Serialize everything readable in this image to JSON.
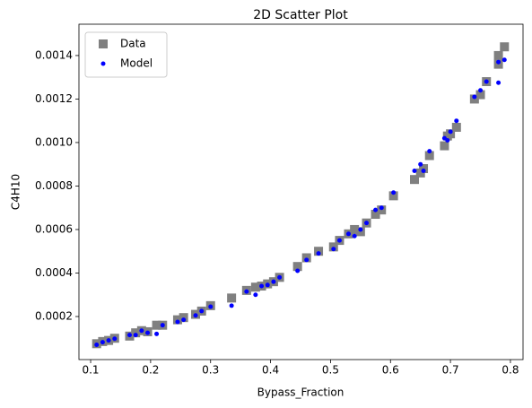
{
  "chart_data": {
    "type": "scatter",
    "title": "2D Scatter Plot",
    "x_label": "Bypass_Fraction",
    "y_label": "C4H10",
    "x": [
      0.11,
      0.12,
      0.13,
      0.14,
      0.165,
      0.175,
      0.185,
      0.195,
      0.21,
      0.22,
      0.245,
      0.255,
      0.275,
      0.285,
      0.3,
      0.335,
      0.36,
      0.375,
      0.385,
      0.395,
      0.405,
      0.415,
      0.445,
      0.46,
      0.48,
      0.505,
      0.515,
      0.53,
      0.54,
      0.55,
      0.56,
      0.575,
      0.585,
      0.605,
      0.64,
      0.65,
      0.655,
      0.665,
      0.69,
      0.695,
      0.7,
      0.71,
      0.74,
      0.75,
      0.76,
      0.78,
      0.78,
      0.79
    ],
    "series": [
      {
        "name": "Data",
        "color": "#808080",
        "marker": "square",
        "values": [
          7.5e-05,
          8.5e-05,
          9e-05,
          0.0001,
          0.00011,
          0.000125,
          0.000135,
          0.00013,
          0.00016,
          0.00016,
          0.000185,
          0.000195,
          0.00021,
          0.000225,
          0.00025,
          0.000285,
          0.00032,
          0.000335,
          0.00034,
          0.00035,
          0.00036,
          0.00038,
          0.00043,
          0.00047,
          0.0005,
          0.00052,
          0.00055,
          0.00058,
          0.0006,
          0.00059,
          0.00063,
          0.00067,
          0.00069,
          0.000755,
          0.00083,
          0.00086,
          0.00088,
          0.00094,
          0.000985,
          0.00103,
          0.00104,
          0.00107,
          0.0012,
          0.00122,
          0.00128,
          0.00136,
          0.0014,
          0.00144
        ]
      },
      {
        "name": "Model",
        "color": "#0000ff",
        "marker": "circle",
        "values": [
          7e-05,
          8.2e-05,
          9e-05,
          9.8e-05,
          0.000115,
          0.000115,
          0.000135,
          0.000125,
          0.00012,
          0.00016,
          0.000175,
          0.000185,
          0.000205,
          0.000225,
          0.000245,
          0.00025,
          0.000315,
          0.0003,
          0.00034,
          0.000345,
          0.00036,
          0.00038,
          0.00041,
          0.00046,
          0.00049,
          0.00051,
          0.00055,
          0.00058,
          0.00057,
          0.0006,
          0.00063,
          0.00069,
          0.0007,
          0.00077,
          0.00087,
          0.0009,
          0.00087,
          0.00096,
          0.00102,
          0.00101,
          0.00105,
          0.0011,
          0.00121,
          0.00124,
          0.00128,
          0.001275,
          0.00137,
          0.00138
        ]
      }
    ],
    "xlim": [
      0.0805,
      0.821
    ],
    "ylim": [
      2e-06,
      0.001544
    ],
    "xticks": [
      0.1,
      0.2,
      0.3,
      0.4,
      0.5,
      0.6,
      0.7,
      0.8
    ],
    "yticks": [
      0.0002,
      0.0004,
      0.0006,
      0.0008,
      {
        "value": 0.001,
        "label": "0.0010"
      },
      0.0012,
      0.0014
    ],
    "legend": "upper left",
    "grid": false
  }
}
